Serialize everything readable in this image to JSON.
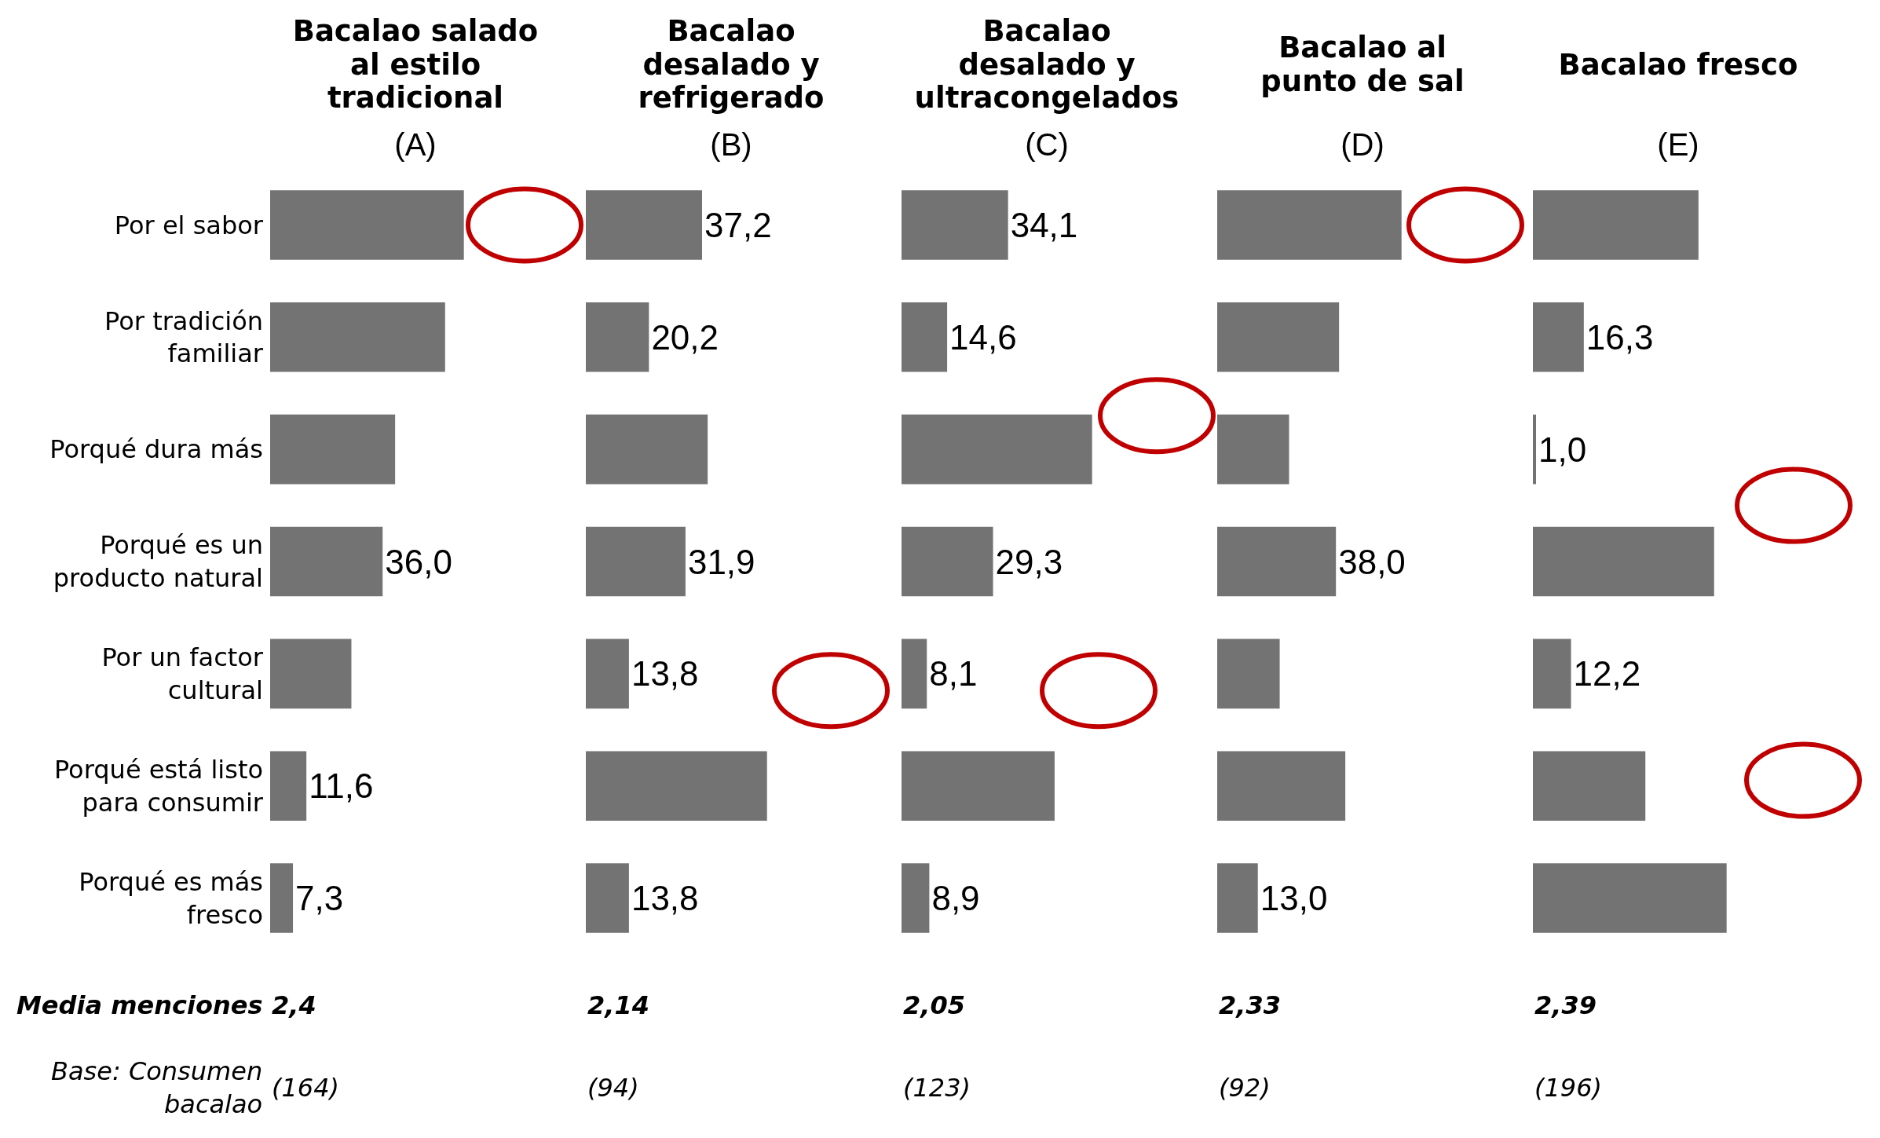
{
  "chart_data": [
    {
      "type": "bar",
      "orientation": "horizontal",
      "title": "Bacalao salado al estilo tradicional",
      "subtitle": "(A)",
      "categories": [
        "Por el sabor",
        "Por tradición familiar",
        "Porqué dura más",
        "Porqué es un producto natural",
        "Por un factor cultural",
        "Porqué está listo para consumir",
        "Porqué es más fresco"
      ],
      "values": [
        62,
        56,
        40,
        36.0,
        26,
        11.6,
        7.3
      ],
      "value_labels": [
        null,
        null,
        null,
        "36,0",
        null,
        "11,6",
        "7,3"
      ],
      "color": "#737373",
      "tick_labels": "y",
      "annotations": [
        "Media menciones",
        "2,4",
        "Base: Consumen bacalao",
        "(164)"
      ]
    },
    {
      "type": "bar",
      "orientation": "horizontal",
      "title": "Bacalao desalado y refrigerado",
      "subtitle": "(B)",
      "categories": [
        null,
        null,
        null,
        null,
        null,
        null,
        null
      ],
      "values": [
        37.2,
        20.2,
        39,
        31.9,
        13.8,
        58,
        13.8
      ],
      "value_labels": [
        "37,2",
        "20,2",
        null,
        "31,9",
        "13,8",
        null,
        "13,8"
      ],
      "color": "#737373",
      "tick_labels": false,
      "annotations": [
        "2,14",
        "(94)"
      ]
    },
    {
      "type": "bar",
      "orientation": "horizontal",
      "title": "Bacalao desalado y ultracongelados",
      "subtitle": "(C)",
      "categories": [
        null,
        null,
        null,
        null,
        null,
        null,
        null
      ],
      "values": [
        34.1,
        14.6,
        61,
        29.3,
        8.1,
        49,
        8.9
      ],
      "value_labels": [
        "34,1",
        "14,6",
        null,
        "29,3",
        "8,1",
        null,
        "8,9"
      ],
      "color": "#737373",
      "tick_labels": false,
      "annotations": [
        "2,05",
        "(123)"
      ]
    },
    {
      "type": "bar",
      "orientation": "horizontal",
      "title": "Bacalao al punto de sal",
      "subtitle": "(D)",
      "categories": [
        null,
        null,
        null,
        null,
        null,
        null,
        null
      ],
      "values": [
        59,
        39,
        23,
        38.0,
        20,
        41,
        13.0
      ],
      "value_labels": [
        null,
        null,
        null,
        "38,0",
        null,
        null,
        "13,0"
      ],
      "color": "#737373",
      "tick_labels": false,
      "annotations": [
        "2,33",
        "(92)"
      ]
    },
    {
      "type": "bar",
      "orientation": "horizontal",
      "title": "Bacalao fresco",
      "subtitle": "(E)",
      "categories": [
        null,
        null,
        null,
        null,
        null,
        null,
        null
      ],
      "values": [
        53,
        16.3,
        1.0,
        58,
        12.2,
        36,
        62
      ],
      "value_labels": [
        null,
        "16,3",
        "1,0",
        null,
        "12,2",
        null,
        null
      ],
      "color": "#737373",
      "tick_labels": false,
      "annotations": [
        "2,39",
        "(196)"
      ]
    }
  ]
}
